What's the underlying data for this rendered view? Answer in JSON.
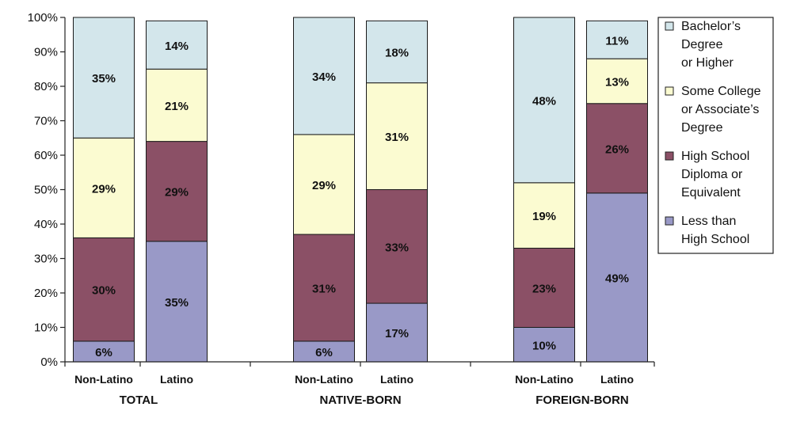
{
  "chart_data": {
    "type": "bar",
    "stacked": true,
    "percent_stacked": true,
    "groups": [
      {
        "label": "TOTAL",
        "categories": [
          "Non-Latino",
          "Latino"
        ]
      },
      {
        "label": "NATIVE-BORN",
        "categories": [
          "Non-Latino",
          "Latino"
        ]
      },
      {
        "label": "FOREIGN-BORN",
        "categories": [
          "Non-Latino",
          "Latino"
        ]
      }
    ],
    "categories": [
      "Non-Latino",
      "Latino",
      "Non-Latino",
      "Latino",
      "Non-Latino",
      "Latino"
    ],
    "series": [
      {
        "name": "Less than High School",
        "color": "#9999c7",
        "values": [
          6,
          35,
          6,
          17,
          10,
          49
        ],
        "labels": [
          "6%",
          "35%",
          "6%",
          "17%",
          "10%",
          "49%"
        ]
      },
      {
        "name": "High School Diploma or Equivalent",
        "color": "#8b5066",
        "values": [
          30,
          29,
          31,
          33,
          23,
          26
        ],
        "labels": [
          "30%",
          "29%",
          "31%",
          "33%",
          "23%",
          "26%"
        ]
      },
      {
        "name": "Some College or Associate’s Degree",
        "color": "#fbfbd1",
        "values": [
          29,
          21,
          29,
          31,
          19,
          13
        ],
        "labels": [
          "29%",
          "21%",
          "29%",
          "31%",
          "19%",
          "13%"
        ]
      },
      {
        "name": "Bachelor’s Degree or Higher",
        "color": "#d3e6eb",
        "values": [
          35,
          14,
          34,
          18,
          48,
          11
        ],
        "labels": [
          "35%",
          "14%",
          "34%",
          "18%",
          "48%",
          "11%"
        ]
      }
    ],
    "yticks": [
      "0%",
      "10%",
      "20%",
      "30%",
      "40%",
      "50%",
      "60%",
      "70%",
      "80%",
      "90%",
      "100%"
    ],
    "ylim": [
      0,
      100
    ],
    "grid": false,
    "legend": {
      "position": "right",
      "entries": [
        {
          "lines": [
            "Bachelor’s",
            "Degree",
            "or Higher"
          ],
          "color": "#d3e6eb"
        },
        {
          "lines": [
            "Some College",
            "or Associate’s",
            "Degree"
          ],
          "color": "#fbfbd1"
        },
        {
          "lines": [
            "High School",
            "Diploma or",
            "Equivalent"
          ],
          "color": "#8b5066"
        },
        {
          "lines": [
            "Less than",
            "High School"
          ],
          "color": "#9999c7"
        }
      ]
    }
  }
}
